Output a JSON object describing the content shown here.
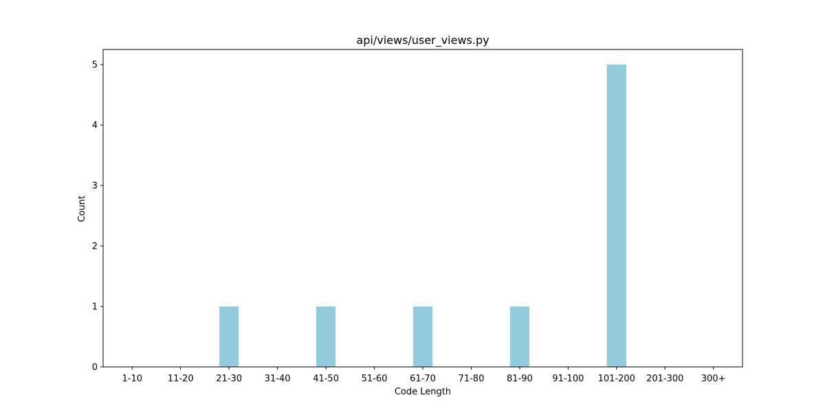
{
  "chart_data": {
    "type": "bar",
    "title": "api/views/user_views.py",
    "xlabel": "Code Length",
    "ylabel": "Count",
    "categories": [
      "1-10",
      "11-20",
      "21-30",
      "31-40",
      "41-50",
      "51-60",
      "61-70",
      "71-80",
      "81-90",
      "91-100",
      "101-200",
      "201-300",
      "300+"
    ],
    "values": [
      0,
      0,
      1,
      0,
      1,
      0,
      1,
      0,
      1,
      0,
      5,
      0,
      0
    ],
    "ylim": [
      0,
      5.25
    ],
    "yticks": [
      0,
      1,
      2,
      3,
      4,
      5
    ],
    "bar_color": "#95c9dc",
    "grid": false,
    "legend": "none"
  }
}
